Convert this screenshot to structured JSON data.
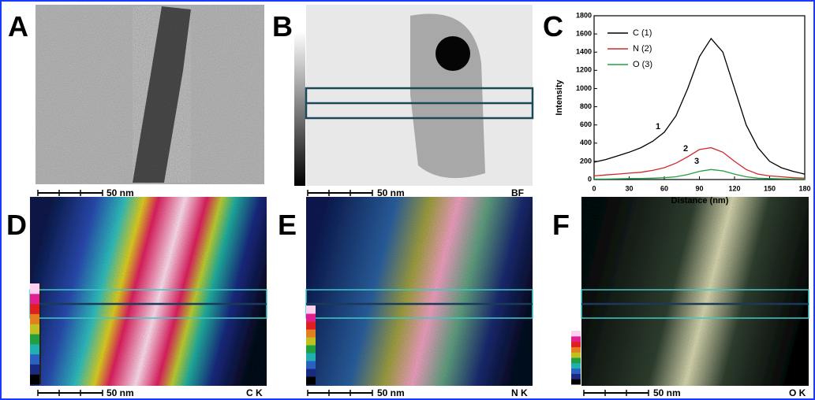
{
  "panels": [
    {
      "label": "A",
      "scale_bar": "50 nm"
    },
    {
      "label": "B",
      "scale_bar": "50 nm",
      "channel": "BF"
    },
    {
      "label": "C"
    },
    {
      "label": "D",
      "scale_bar": "50 nm",
      "channel": "C K"
    },
    {
      "label": "E",
      "scale_bar": "50 nm",
      "channel": "N K"
    },
    {
      "label": "F",
      "scale_bar": "50 nm",
      "channel": "O K"
    }
  ],
  "chart_data": {
    "type": "line",
    "xlabel": "Distance (nm)",
    "ylabel": "Intensity",
    "x": [
      0,
      10,
      20,
      30,
      40,
      50,
      60,
      70,
      80,
      90,
      100,
      110,
      120,
      130,
      140,
      150,
      160,
      170,
      180
    ],
    "series": [
      {
        "name": "C (1)",
        "color": "#000000",
        "values": [
          190,
          220,
          260,
          300,
          350,
          420,
          520,
          700,
          1000,
          1350,
          1550,
          1400,
          1000,
          600,
          350,
          200,
          130,
          90,
          60
        ]
      },
      {
        "name": "N (2)",
        "color": "#d02828",
        "values": [
          40,
          50,
          60,
          70,
          80,
          100,
          130,
          180,
          250,
          330,
          350,
          300,
          200,
          110,
          60,
          40,
          30,
          20,
          15
        ]
      },
      {
        "name": "O (3)",
        "color": "#20a040",
        "values": [
          5,
          5,
          8,
          10,
          12,
          15,
          20,
          30,
          55,
          90,
          110,
          95,
          60,
          30,
          15,
          10,
          8,
          5,
          5
        ]
      }
    ],
    "annotations": [
      "1",
      "2",
      "3"
    ],
    "xlim": [
      0,
      180
    ],
    "xticks": [
      0,
      30,
      60,
      90,
      120,
      150,
      180
    ],
    "ylim": [
      0,
      1800
    ],
    "yticks": [
      0,
      200,
      400,
      600,
      800,
      1000,
      1200,
      1400,
      1600,
      1800
    ],
    "grid": false
  }
}
